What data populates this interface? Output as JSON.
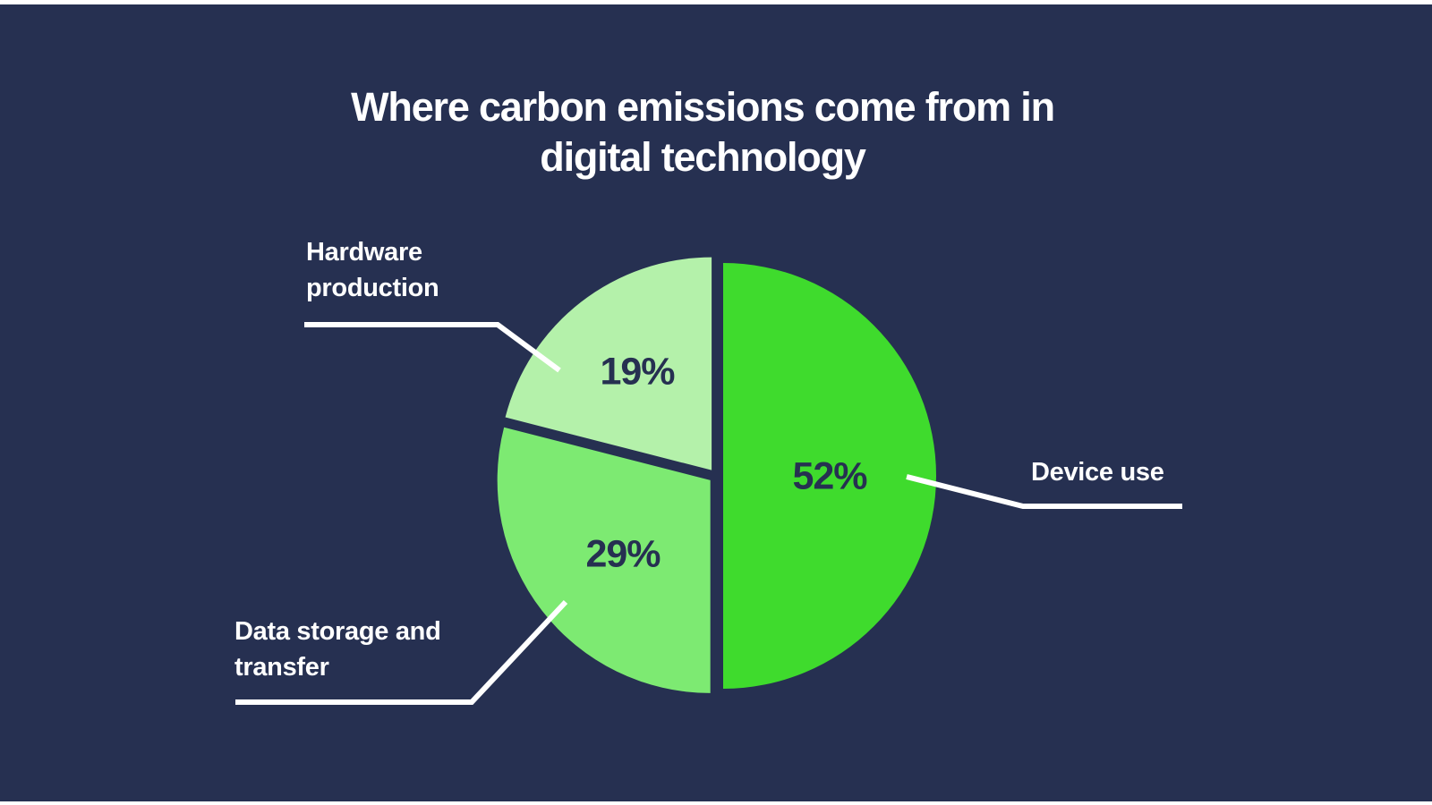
{
  "title": {
    "line1": "Where carbon emissions come from in",
    "line2": "digital technology"
  },
  "colors": {
    "background": "#263051",
    "page_edge": "#ffffff",
    "title_text": "#ffffff",
    "category_label_text": "#ffffff",
    "percent_label_text": "#263051",
    "leader_line": "#ffffff"
  },
  "chart_data": {
    "type": "pie",
    "title": "Where carbon emissions come from in digital technology",
    "categories": [
      "Device use",
      "Data storage and transfer",
      "Hardware production"
    ],
    "values": [
      52,
      29,
      19
    ],
    "value_labels": [
      "52%",
      "29%",
      "19%"
    ],
    "unit": "%",
    "slice_colors": [
      "#3fdb2d",
      "#7dea72",
      "#b4f1aa"
    ],
    "start_angle": "top",
    "direction": "clockwise",
    "legend_position": "none",
    "labels_on_slices": true,
    "exploded": true
  }
}
